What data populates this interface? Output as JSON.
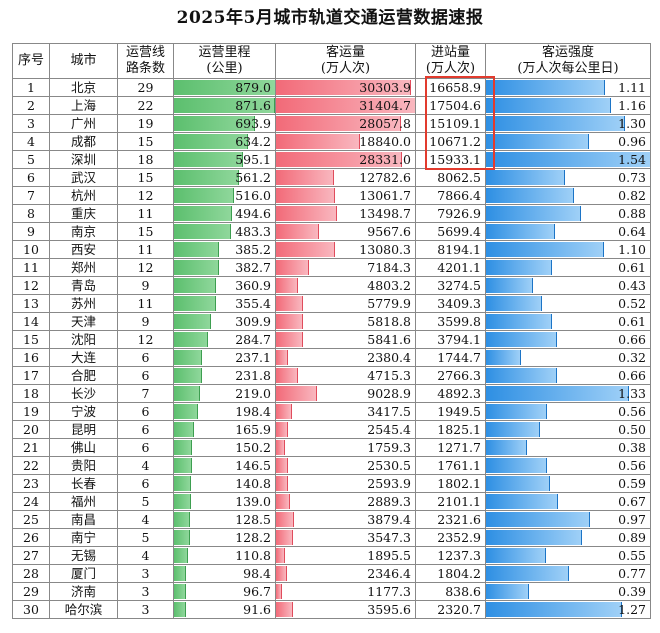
{
  "title": "2025年5月城市轨道交通运营数据速报",
  "headers": {
    "seq": "序号",
    "city": "城市",
    "lines": [
      "运营线",
      "路条数"
    ],
    "mileage": [
      "运营里程",
      "(公里)"
    ],
    "ridership": [
      "客运量",
      "(万人次)"
    ],
    "entries": [
      "进站量",
      "(万人次)"
    ],
    "intensity": [
      "客运强度",
      "(万人次每公里日)"
    ]
  },
  "colors": {
    "mileage_bar": "#5cbf6e",
    "ridership_bar": "#f26a78",
    "intensity_bar": "#2e8fe3",
    "highlight_box": "#e23b2e"
  },
  "scale": {
    "mileage_max": 879.0,
    "ridership_max": 31404.7,
    "intensity_max": 1.54
  },
  "rows": [
    {
      "seq": "1",
      "city": "北京",
      "lines": "29",
      "mileage": "879.0",
      "ridership": "30303.9",
      "entries": "16658.9",
      "intensity": "1.11"
    },
    {
      "seq": "2",
      "city": "上海",
      "lines": "22",
      "mileage": "871.6",
      "ridership": "31404.7",
      "entries": "17504.6",
      "intensity": "1.16"
    },
    {
      "seq": "3",
      "city": "广州",
      "lines": "19",
      "mileage": "693.9",
      "ridership": "28057.8",
      "entries": "15109.1",
      "intensity": "1.30"
    },
    {
      "seq": "4",
      "city": "成都",
      "lines": "15",
      "mileage": "634.2",
      "ridership": "18840.0",
      "entries": "10671.2",
      "intensity": "0.96"
    },
    {
      "seq": "5",
      "city": "深圳",
      "lines": "18",
      "mileage": "595.1",
      "ridership": "28331.0",
      "entries": "15933.1",
      "intensity": "1.54"
    },
    {
      "seq": "6",
      "city": "武汉",
      "lines": "15",
      "mileage": "561.2",
      "ridership": "12782.6",
      "entries": "8062.5",
      "intensity": "0.73"
    },
    {
      "seq": "7",
      "city": "杭州",
      "lines": "12",
      "mileage": "516.0",
      "ridership": "13061.7",
      "entries": "7866.4",
      "intensity": "0.82"
    },
    {
      "seq": "8",
      "city": "重庆",
      "lines": "11",
      "mileage": "494.6",
      "ridership": "13498.7",
      "entries": "7926.9",
      "intensity": "0.88"
    },
    {
      "seq": "9",
      "city": "南京",
      "lines": "15",
      "mileage": "483.3",
      "ridership": "9567.6",
      "entries": "5699.4",
      "intensity": "0.64"
    },
    {
      "seq": "10",
      "city": "西安",
      "lines": "11",
      "mileage": "385.2",
      "ridership": "13080.3",
      "entries": "8194.1",
      "intensity": "1.10"
    },
    {
      "seq": "11",
      "city": "郑州",
      "lines": "12",
      "mileage": "382.7",
      "ridership": "7184.3",
      "entries": "4201.1",
      "intensity": "0.61"
    },
    {
      "seq": "12",
      "city": "青岛",
      "lines": "9",
      "mileage": "360.9",
      "ridership": "4803.2",
      "entries": "3274.5",
      "intensity": "0.43"
    },
    {
      "seq": "13",
      "city": "苏州",
      "lines": "11",
      "mileage": "355.4",
      "ridership": "5779.9",
      "entries": "3409.3",
      "intensity": "0.52"
    },
    {
      "seq": "14",
      "city": "天津",
      "lines": "9",
      "mileage": "309.9",
      "ridership": "5818.8",
      "entries": "3599.8",
      "intensity": "0.61"
    },
    {
      "seq": "15",
      "city": "沈阳",
      "lines": "12",
      "mileage": "284.7",
      "ridership": "5841.6",
      "entries": "3794.1",
      "intensity": "0.66"
    },
    {
      "seq": "16",
      "city": "大连",
      "lines": "6",
      "mileage": "237.1",
      "ridership": "2380.4",
      "entries": "1744.7",
      "intensity": "0.32"
    },
    {
      "seq": "17",
      "city": "合肥",
      "lines": "6",
      "mileage": "231.8",
      "ridership": "4715.3",
      "entries": "2766.3",
      "intensity": "0.66"
    },
    {
      "seq": "18",
      "city": "长沙",
      "lines": "7",
      "mileage": "219.0",
      "ridership": "9028.9",
      "entries": "4892.3",
      "intensity": "1.33"
    },
    {
      "seq": "19",
      "city": "宁波",
      "lines": "6",
      "mileage": "198.4",
      "ridership": "3417.5",
      "entries": "1949.5",
      "intensity": "0.56"
    },
    {
      "seq": "20",
      "city": "昆明",
      "lines": "6",
      "mileage": "165.9",
      "ridership": "2545.4",
      "entries": "1825.1",
      "intensity": "0.50"
    },
    {
      "seq": "21",
      "city": "佛山",
      "lines": "6",
      "mileage": "150.2",
      "ridership": "1759.3",
      "entries": "1271.7",
      "intensity": "0.38"
    },
    {
      "seq": "22",
      "city": "贵阳",
      "lines": "4",
      "mileage": "146.5",
      "ridership": "2530.5",
      "entries": "1761.1",
      "intensity": "0.56"
    },
    {
      "seq": "23",
      "city": "长春",
      "lines": "6",
      "mileage": "140.8",
      "ridership": "2593.9",
      "entries": "1802.1",
      "intensity": "0.59"
    },
    {
      "seq": "24",
      "city": "福州",
      "lines": "5",
      "mileage": "139.0",
      "ridership": "2889.3",
      "entries": "2101.1",
      "intensity": "0.67"
    },
    {
      "seq": "25",
      "city": "南昌",
      "lines": "4",
      "mileage": "128.5",
      "ridership": "3879.4",
      "entries": "2321.6",
      "intensity": "0.97"
    },
    {
      "seq": "26",
      "city": "南宁",
      "lines": "5",
      "mileage": "128.2",
      "ridership": "3547.3",
      "entries": "2352.9",
      "intensity": "0.89"
    },
    {
      "seq": "27",
      "city": "无锡",
      "lines": "4",
      "mileage": "110.8",
      "ridership": "1895.5",
      "entries": "1237.3",
      "intensity": "0.55"
    },
    {
      "seq": "28",
      "city": "厦门",
      "lines": "3",
      "mileage": "98.4",
      "ridership": "2346.4",
      "entries": "1804.2",
      "intensity": "0.77"
    },
    {
      "seq": "29",
      "city": "济南",
      "lines": "3",
      "mileage": "96.7",
      "ridership": "1177.3",
      "entries": "838.6",
      "intensity": "0.39"
    },
    {
      "seq": "30",
      "city": "哈尔滨",
      "lines": "3",
      "mileage": "91.6",
      "ridership": "3595.6",
      "entries": "2320.7",
      "intensity": "1.27"
    }
  ]
}
